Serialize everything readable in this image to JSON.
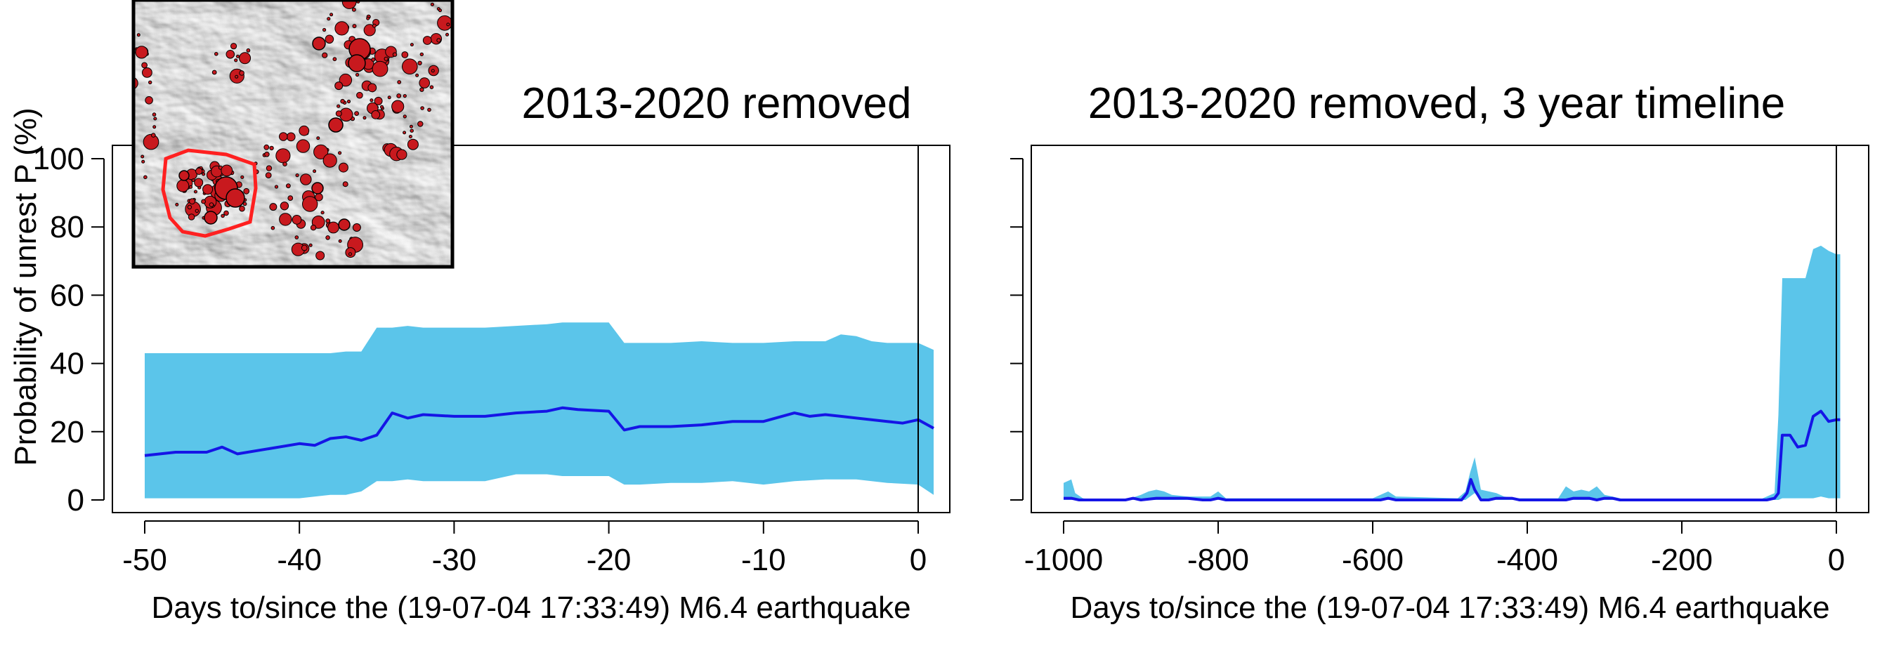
{
  "colors": {
    "band": "#5bc5ea",
    "line": "#1515e6",
    "dots": "#c8191e",
    "region": "#ff2020"
  },
  "shared": {
    "ylabel": "Probability of unrest P (%)"
  },
  "chart_data": [
    {
      "type": "area",
      "title": "2013-2020 removed",
      "xlabel": "Days to/since the (19-07-04 17:33:49) M6.4 earthquake",
      "ylabel": "Probability of unrest P (%)",
      "xlim": [
        -52,
        4
      ],
      "ylim": [
        -3,
        104
      ],
      "x_ticks": [
        -50,
        -40,
        -30,
        -20,
        -10,
        0
      ],
      "y_ticks": [
        0,
        20,
        40,
        60,
        80,
        100
      ],
      "vline_x": 0,
      "grid": false,
      "series": [
        {
          "kind": "band",
          "x": [
            -50,
            -48,
            -46,
            -44,
            -42,
            -40,
            -38,
            -37,
            -36,
            -35,
            -34,
            -33,
            -32,
            -30,
            -28,
            -26,
            -24,
            -23,
            -22,
            -20,
            -19,
            -18,
            -16,
            -14,
            -12,
            -10,
            -8,
            -6,
            -5,
            -4,
            -3,
            -2,
            0,
            1
          ],
          "lower": [
            0.5,
            0.5,
            0.5,
            0.5,
            0.5,
            0.5,
            1.5,
            1.5,
            2.5,
            5.5,
            5.5,
            6,
            5.5,
            5.5,
            5.5,
            7.5,
            7.5,
            7,
            7,
            7,
            4.5,
            4.5,
            5,
            5,
            5.5,
            4.5,
            5.5,
            6,
            6,
            6,
            5.5,
            5,
            4.5,
            1.5
          ],
          "upper": [
            43,
            43,
            43,
            43,
            43,
            43,
            43,
            43.5,
            43.5,
            50.5,
            50.5,
            51,
            50.5,
            50.5,
            50.5,
            51,
            51.5,
            52,
            52,
            52,
            46,
            46,
            46,
            46.5,
            46,
            46,
            46.5,
            46.5,
            48.5,
            48,
            46.5,
            46,
            46,
            44
          ]
        },
        {
          "kind": "line",
          "x": [
            -50,
            -48,
            -46,
            -45,
            -44,
            -42,
            -40,
            -39,
            -38,
            -37,
            -36,
            -35,
            -34,
            -33,
            -32,
            -30,
            -28,
            -26,
            -24,
            -23,
            -22,
            -20,
            -19,
            -18,
            -16,
            -14,
            -12,
            -10,
            -8,
            -7,
            -6,
            -5,
            -4,
            -2,
            -1,
            0,
            1
          ],
          "y": [
            13,
            14,
            14,
            15.5,
            13.5,
            15,
            16.5,
            16,
            18,
            18.5,
            17.5,
            19,
            25.5,
            24,
            25,
            24.5,
            24.5,
            25.5,
            26,
            27,
            26.5,
            26,
            20.5,
            21.5,
            21.5,
            22,
            23,
            23,
            25.5,
            24.5,
            25,
            24.5,
            24,
            23,
            22.5,
            23.5,
            21
          ]
        }
      ]
    },
    {
      "type": "area",
      "title": "2013-2020 removed, 3 year timeline",
      "xlabel": "Days to/since the (19-07-04 17:33:49) M6.4 earthquake",
      "ylabel": "",
      "xlim": [
        -1050,
        40
      ],
      "ylim": [
        -3,
        104
      ],
      "x_ticks": [
        -1000,
        -800,
        -600,
        -400,
        -200,
        0
      ],
      "y_ticks": [
        0,
        20,
        40,
        60,
        80,
        100
      ],
      "vline_x": 0,
      "grid": false,
      "series": [
        {
          "kind": "band",
          "x": [
            -1000,
            -990,
            -985,
            -975,
            -960,
            -920,
            -900,
            -890,
            -880,
            -870,
            -860,
            -840,
            -810,
            -800,
            -790,
            -600,
            -590,
            -580,
            -570,
            -490,
            -480,
            -474,
            -468,
            -460,
            -440,
            -430,
            -410,
            -360,
            -350,
            -340,
            -330,
            -320,
            -310,
            -300,
            -290,
            -280,
            -270,
            -100,
            -90,
            -80,
            -75,
            -70,
            -60,
            -50,
            -40,
            -30,
            -20,
            -10,
            0,
            5
          ],
          "lower": [
            0,
            0,
            0,
            0,
            0,
            0,
            0,
            0,
            0,
            0,
            0,
            0,
            0,
            0,
            0,
            0,
            0,
            0,
            0,
            0,
            0,
            1,
            2,
            0,
            0,
            0,
            0,
            0,
            0,
            0,
            0,
            0,
            0,
            0,
            0,
            0,
            0,
            0,
            0,
            0,
            0,
            0.5,
            0.5,
            0.5,
            0.5,
            0.5,
            1,
            0.5,
            0.5,
            0.5
          ],
          "upper": [
            5,
            6,
            2,
            0.5,
            0,
            0,
            1.5,
            2.5,
            3,
            2.5,
            1.5,
            1,
            1,
            2.5,
            0.5,
            0.5,
            1.5,
            2.5,
            1,
            0.5,
            2.5,
            8,
            12.5,
            3,
            2,
            1,
            0.5,
            0.5,
            4,
            2.5,
            3,
            2.5,
            4,
            1.5,
            1,
            0.5,
            0,
            0,
            1,
            2,
            25,
            65,
            65,
            65,
            65,
            73.5,
            74.5,
            73,
            72,
            72
          ]
        },
        {
          "kind": "line",
          "x": [
            -1000,
            -990,
            -980,
            -960,
            -940,
            -920,
            -910,
            -900,
            -880,
            -860,
            -840,
            -820,
            -810,
            -800,
            -790,
            -600,
            -590,
            -580,
            -570,
            -490,
            -485,
            -478,
            -473,
            -468,
            -460,
            -450,
            -440,
            -430,
            -420,
            -410,
            -350,
            -340,
            -330,
            -320,
            -310,
            -300,
            -290,
            -280,
            -270,
            -100,
            -90,
            -80,
            -75,
            -70,
            -60,
            -50,
            -40,
            -30,
            -20,
            -10,
            0,
            5
          ],
          "y": [
            0.5,
            0.5,
            0,
            0,
            0,
            0,
            0.5,
            0,
            0.5,
            0.5,
            0.5,
            0,
            0,
            0.5,
            0,
            0,
            0,
            0.5,
            0,
            0,
            0,
            2,
            6,
            3,
            0,
            0,
            0.5,
            0.5,
            0.5,
            0,
            0,
            0.5,
            0.5,
            0.5,
            0,
            0.5,
            0.5,
            0,
            0,
            0,
            0,
            0.5,
            2,
            19,
            19,
            15.5,
            16,
            24.5,
            26,
            23,
            23.5,
            23.5
          ]
        }
      ]
    }
  ],
  "inset": {
    "kind": "hillshade map with red earthquake dots and an outlined sub-region"
  }
}
